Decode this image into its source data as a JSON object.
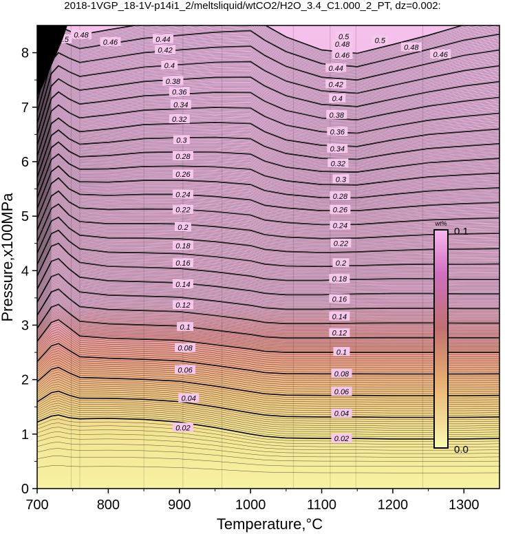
{
  "chart_data": {
    "type": "heatmap",
    "title": "2018-1VGP_18-1V-p14i1_2/meltsliquid/wtCO2/H2O_3.4_C1.000_2_PT, dz=0.002:",
    "xlabel": "Temperature,°C",
    "ylabel": "Pressure,x100MPa",
    "xlim": [
      700,
      1350
    ],
    "ylim": [
      0,
      8.5
    ],
    "x_ticks": [
      "700",
      "800",
      "900",
      "1000",
      "1100",
      "1200",
      "1300"
    ],
    "y_ticks": [
      "0",
      "1",
      "2",
      "3",
      "4",
      "5",
      "6",
      "7",
      "8"
    ],
    "contour_interval": 0.002,
    "labeled_contour_interval": 0.02,
    "contour_profile": {
      "temperature": [
        700,
        720,
        730,
        745,
        760,
        800,
        850,
        900,
        950,
        1000,
        1020,
        1050,
        1100,
        1150,
        1200,
        1250,
        1300,
        1350
      ],
      "pressure_at_0.02": [
        1.22,
        1.33,
        1.35,
        1.3,
        1.28,
        1.29,
        1.27,
        1.22,
        1.12,
        1.0,
        0.96,
        0.93,
        0.92,
        0.92,
        0.91,
        0.91,
        0.91,
        0.92
      ],
      "pressure_at_0.1": [
        2.7,
        3.05,
        3.1,
        2.95,
        2.8,
        2.76,
        2.74,
        2.72,
        2.64,
        2.56,
        2.52,
        2.5,
        2.5,
        2.5,
        2.5,
        2.5,
        2.5,
        2.5
      ],
      "pressure_at_0.2": [
        3.9,
        4.45,
        4.5,
        4.3,
        4.15,
        4.08,
        4.06,
        4.04,
        3.98,
        3.9,
        3.85,
        3.82,
        3.82,
        3.84,
        3.85,
        3.85,
        3.84,
        3.84
      ],
      "pressure_at_0.3": [
        4.95,
        5.6,
        5.7,
        5.5,
        5.4,
        5.38,
        5.4,
        5.4,
        5.36,
        5.3,
        5.2,
        5.15,
        5.1,
        5.1,
        5.15,
        5.2,
        5.23,
        5.25
      ],
      "pressure_at_0.4": [
        5.9,
        6.7,
        6.8,
        6.65,
        6.55,
        6.6,
        6.68,
        6.7,
        6.72,
        6.7,
        6.55,
        6.4,
        6.3,
        6.28,
        6.4,
        6.5,
        6.55,
        6.6
      ],
      "pressure_at_0.5": [
        6.9,
        7.85,
        8.0,
        7.9,
        7.82,
        7.9,
        8.0,
        8.05,
        8.1,
        8.12,
        7.95,
        7.75,
        7.55,
        7.5,
        7.65,
        7.8,
        7.95,
        8.05
      ]
    },
    "contour_labels": [
      {
        "text": "0.02",
        "x": 905,
        "y": 1.12
      },
      {
        "text": "0.04",
        "x": 913,
        "y": 1.66
      },
      {
        "text": "0.06",
        "x": 908,
        "y": 2.18
      },
      {
        "text": "0.08",
        "x": 908,
        "y": 2.58
      },
      {
        "text": "0.1",
        "x": 908,
        "y": 2.97
      },
      {
        "text": "0.12",
        "x": 905,
        "y": 3.37
      },
      {
        "text": "0.14",
        "x": 905,
        "y": 3.75
      },
      {
        "text": "0.16",
        "x": 905,
        "y": 4.14
      },
      {
        "text": "0.18",
        "x": 905,
        "y": 4.46
      },
      {
        "text": "0.2",
        "x": 905,
        "y": 4.8
      },
      {
        "text": "0.22",
        "x": 905,
        "y": 5.12
      },
      {
        "text": "0.24",
        "x": 905,
        "y": 5.4
      },
      {
        "text": "0.26",
        "x": 905,
        "y": 5.77
      },
      {
        "text": "0.28",
        "x": 905,
        "y": 6.1
      },
      {
        "text": "0.3",
        "x": 903,
        "y": 6.4
      },
      {
        "text": "0.32",
        "x": 900,
        "y": 6.78
      },
      {
        "text": "0.34",
        "x": 902,
        "y": 7.05
      },
      {
        "text": "0.36",
        "x": 900,
        "y": 7.28
      },
      {
        "text": "0.38",
        "x": 891,
        "y": 7.48
      },
      {
        "text": "0.4",
        "x": 886,
        "y": 7.77
      },
      {
        "text": "0.42",
        "x": 880,
        "y": 8.05
      },
      {
        "text": "0.44",
        "x": 877,
        "y": 8.25
      },
      {
        "text": "0.46",
        "x": 803,
        "y": 8.2
      },
      {
        "text": "0.48",
        "x": 762,
        "y": 8.33
      },
      {
        "text": "0.5",
        "x": 737,
        "y": 8.25
      },
      {
        "text": "0.02",
        "x": 1128,
        "y": 0.92
      },
      {
        "text": "0.04",
        "x": 1128,
        "y": 1.38
      },
      {
        "text": "0.06",
        "x": 1128,
        "y": 1.78
      },
      {
        "text": "0.08",
        "x": 1128,
        "y": 2.11
      },
      {
        "text": "0.1",
        "x": 1128,
        "y": 2.51
      },
      {
        "text": "0.12",
        "x": 1125,
        "y": 2.86
      },
      {
        "text": "0.14",
        "x": 1125,
        "y": 3.16
      },
      {
        "text": "0.16",
        "x": 1125,
        "y": 3.48
      },
      {
        "text": "0.18",
        "x": 1125,
        "y": 3.85
      },
      {
        "text": "0.2",
        "x": 1127,
        "y": 4.14
      },
      {
        "text": "0.22",
        "x": 1127,
        "y": 4.5
      },
      {
        "text": "0.24",
        "x": 1126,
        "y": 4.83
      },
      {
        "text": "0.26",
        "x": 1126,
        "y": 5.12
      },
      {
        "text": "0.28",
        "x": 1126,
        "y": 5.37
      },
      {
        "text": "0.3",
        "x": 1127,
        "y": 5.68
      },
      {
        "text": "0.32",
        "x": 1123,
        "y": 5.97
      },
      {
        "text": "0.34",
        "x": 1122,
        "y": 6.24
      },
      {
        "text": "0.36",
        "x": 1122,
        "y": 6.55
      },
      {
        "text": "0.38",
        "x": 1121,
        "y": 6.86
      },
      {
        "text": "0.4",
        "x": 1122,
        "y": 7.16
      },
      {
        "text": "0.42",
        "x": 1120,
        "y": 7.42
      },
      {
        "text": "0.44",
        "x": 1120,
        "y": 7.72
      },
      {
        "text": "0.46",
        "x": 1129,
        "y": 7.96
      },
      {
        "text": "0.48",
        "x": 1129,
        "y": 8.16
      },
      {
        "text": "0.5",
        "x": 1131,
        "y": 8.3
      },
      {
        "text": "0.5",
        "x": 1182,
        "y": 8.23
      },
      {
        "text": "0.48",
        "x": 1226,
        "y": 8.1
      },
      {
        "text": "0.46",
        "x": 1267,
        "y": 7.97
      }
    ],
    "colorbar": {
      "unit": "wt%",
      "min_label": "0.0",
      "max_label": "0.1",
      "colors": [
        "#f8f8a0",
        "#f0a060",
        "#e08080",
        "#f0a8e0"
      ]
    }
  }
}
